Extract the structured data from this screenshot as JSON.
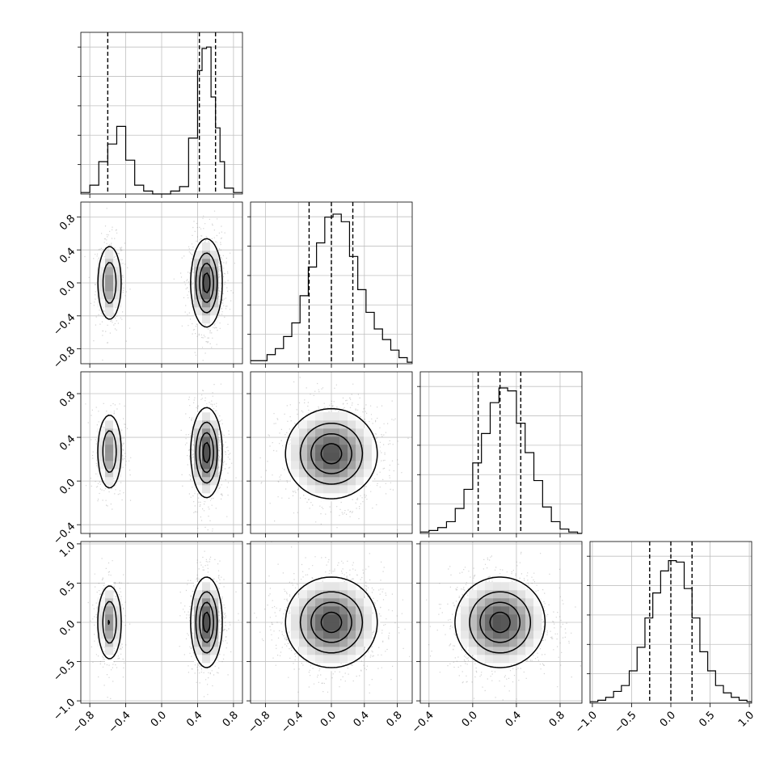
{
  "figure": {
    "type": "corner-plot",
    "parameters": 4,
    "background": "#ffffff",
    "colors": {
      "ink": "#000000",
      "grid": "#c0c0c0",
      "scatter": "#7f7f7f"
    },
    "grid": true,
    "axis_labels": []
  },
  "chart_data": [
    {
      "type": "histogram",
      "panel": "hist-0",
      "param": 0,
      "range": [
        -0.9,
        0.9
      ],
      "bin_edges": [
        -0.9,
        -0.8,
        -0.7,
        -0.6,
        -0.5,
        -0.4,
        -0.3,
        -0.2,
        -0.1,
        0.0,
        0.1,
        0.2,
        0.3,
        0.4,
        0.45,
        0.5,
        0.55,
        0.6,
        0.65,
        0.7,
        0.8,
        0.9
      ],
      "counts": [
        0.01,
        0.06,
        0.22,
        0.34,
        0.46,
        0.23,
        0.06,
        0.02,
        0.0,
        0.0,
        0.02,
        0.05,
        0.38,
        0.84,
        0.99,
        1.0,
        0.66,
        0.45,
        0.22,
        0.04,
        0.01
      ],
      "quantile_lines": [
        -0.6,
        0.42,
        0.6
      ],
      "ymax": 1.1,
      "grid": true
    },
    {
      "type": "histogram",
      "panel": "hist-1",
      "param": 1,
      "range": [
        -0.98,
        0.98
      ],
      "bin_edges": [
        -0.98,
        -0.88,
        -0.78,
        -0.68,
        -0.58,
        -0.48,
        -0.38,
        -0.28,
        -0.18,
        -0.08,
        0.02,
        0.12,
        0.22,
        0.32,
        0.42,
        0.52,
        0.62,
        0.72,
        0.82,
        0.92,
        0.98
      ],
      "counts": [
        0.02,
        0.02,
        0.06,
        0.1,
        0.18,
        0.27,
        0.45,
        0.64,
        0.8,
        0.97,
        0.99,
        0.94,
        0.71,
        0.49,
        0.34,
        0.23,
        0.16,
        0.09,
        0.04,
        0.01
      ],
      "quantile_lines": [
        -0.27,
        0.0,
        0.26
      ],
      "ymax": 1.07,
      "grid": true
    },
    {
      "type": "histogram",
      "panel": "hist-2",
      "param": 2,
      "range": [
        -0.48,
        1.0
      ],
      "bin_edges": [
        -0.48,
        -0.4,
        -0.32,
        -0.24,
        -0.16,
        -0.08,
        0.0,
        0.08,
        0.16,
        0.24,
        0.32,
        0.4,
        0.48,
        0.56,
        0.64,
        0.72,
        0.8,
        0.88,
        0.96,
        1.0
      ],
      "counts": [
        0.01,
        0.02,
        0.04,
        0.08,
        0.17,
        0.3,
        0.48,
        0.68,
        0.89,
        0.99,
        0.97,
        0.75,
        0.55,
        0.36,
        0.18,
        0.08,
        0.03,
        0.01,
        0.0
      ],
      "quantile_lines": [
        0.05,
        0.25,
        0.44
      ],
      "ymax": 1.1,
      "grid": true
    },
    {
      "type": "histogram",
      "panel": "hist-3",
      "param": 3,
      "range": [
        -1.03,
        1.03
      ],
      "bin_edges": [
        -1.03,
        -0.93,
        -0.83,
        -0.73,
        -0.63,
        -0.53,
        -0.43,
        -0.33,
        -0.23,
        -0.13,
        -0.03,
        0.07,
        0.17,
        0.27,
        0.37,
        0.47,
        0.57,
        0.67,
        0.77,
        0.87,
        0.97,
        1.03
      ],
      "counts": [
        0.01,
        0.02,
        0.04,
        0.08,
        0.12,
        0.22,
        0.38,
        0.58,
        0.75,
        0.9,
        0.97,
        0.96,
        0.78,
        0.58,
        0.35,
        0.22,
        0.12,
        0.07,
        0.04,
        0.02,
        0.01
      ],
      "quantile_lines": [
        -0.27,
        0.0,
        0.27
      ],
      "ymax": 1.1,
      "grid": true
    },
    {
      "type": "heatmap",
      "panel": "pair-1-0",
      "x_param": 0,
      "y_param": 1,
      "xlim": [
        -0.9,
        0.9
      ],
      "ylim": [
        -0.98,
        0.98
      ],
      "modes": [
        {
          "cx": -0.58,
          "cy": 0.0,
          "sx": 0.07,
          "sy": 0.24,
          "w": 0.33
        },
        {
          "cx": 0.5,
          "cy": 0.0,
          "sx": 0.085,
          "sy": 0.26,
          "w": 0.67
        }
      ]
    },
    {
      "type": "heatmap",
      "panel": "pair-2-0",
      "x_param": 0,
      "y_param": 2,
      "xlim": [
        -0.9,
        0.9
      ],
      "ylim": [
        -0.48,
        1.0
      ],
      "modes": [
        {
          "cx": -0.58,
          "cy": 0.27,
          "sx": 0.07,
          "sy": 0.18,
          "w": 0.33
        },
        {
          "cx": 0.5,
          "cy": 0.26,
          "sx": 0.085,
          "sy": 0.2,
          "w": 0.67
        }
      ]
    },
    {
      "type": "heatmap",
      "panel": "pair-3-0",
      "x_param": 0,
      "y_param": 3,
      "xlim": [
        -0.9,
        0.9
      ],
      "ylim": [
        -1.03,
        1.03
      ],
      "modes": [
        {
          "cx": -0.58,
          "cy": 0.0,
          "sx": 0.07,
          "sy": 0.25,
          "w": 0.33
        },
        {
          "cx": 0.5,
          "cy": 0.0,
          "sx": 0.085,
          "sy": 0.28,
          "w": 0.67
        }
      ]
    },
    {
      "type": "heatmap",
      "panel": "pair-2-1",
      "x_param": 1,
      "y_param": 2,
      "xlim": [
        -0.98,
        0.98
      ],
      "ylim": [
        -0.48,
        1.0
      ],
      "modes": [
        {
          "cx": 0.0,
          "cy": 0.25,
          "sx": 0.27,
          "sy": 0.2,
          "w": 1.0
        }
      ]
    },
    {
      "type": "heatmap",
      "panel": "pair-3-1",
      "x_param": 1,
      "y_param": 3,
      "xlim": [
        -0.98,
        0.98
      ],
      "ylim": [
        -1.03,
        1.03
      ],
      "modes": [
        {
          "cx": 0.0,
          "cy": 0.0,
          "sx": 0.27,
          "sy": 0.28,
          "w": 1.0
        }
      ]
    },
    {
      "type": "heatmap",
      "panel": "pair-3-2",
      "x_param": 2,
      "y_param": 3,
      "xlim": [
        -0.48,
        1.0
      ],
      "ylim": [
        -1.03,
        1.03
      ],
      "modes": [
        {
          "cx": 0.25,
          "cy": 0.0,
          "sx": 0.2,
          "sy": 0.28,
          "w": 1.0
        }
      ]
    }
  ],
  "ticks": {
    "hist0_x": {
      "values": [
        -0.8,
        -0.4,
        0.0,
        0.4,
        0.8
      ],
      "labels": [
        "−0.8",
        "−0.4",
        "0.0",
        "0.4",
        "0.8"
      ]
    },
    "hist1_x": {
      "values": [
        -0.8,
        -0.4,
        0.0,
        0.4,
        0.8
      ],
      "labels": [
        "−0.8",
        "−0.4",
        "0.0",
        "0.4",
        "0.8"
      ]
    },
    "hist2_x": {
      "values": [
        -0.4,
        0.0,
        0.4,
        0.8
      ],
      "labels": [
        "−0.4",
        "0.0",
        "0.4",
        "0.8"
      ]
    },
    "hist3_x": {
      "values": [
        -1.0,
        -0.5,
        0.0,
        0.5,
        1.0
      ],
      "labels": [
        "−1.0",
        "−0.5",
        "0.0",
        "0.5",
        "1.0"
      ]
    },
    "row1_y": {
      "values": [
        -0.8,
        -0.4,
        0.0,
        0.4,
        0.8
      ],
      "labels": [
        "−0.8",
        "−0.4",
        "0.0",
        "0.4",
        "0.8"
      ]
    },
    "row2_y": {
      "values": [
        -0.4,
        0.0,
        0.4,
        0.8
      ],
      "labels": [
        "−0.4",
        "0.0",
        "0.4",
        "0.8"
      ]
    },
    "row3_y": {
      "values": [
        -1.0,
        -0.5,
        0.0,
        0.5,
        1.0
      ],
      "labels": [
        "−1.0",
        "−0.5",
        "0.0",
        "0.5",
        "1.0"
      ]
    }
  }
}
